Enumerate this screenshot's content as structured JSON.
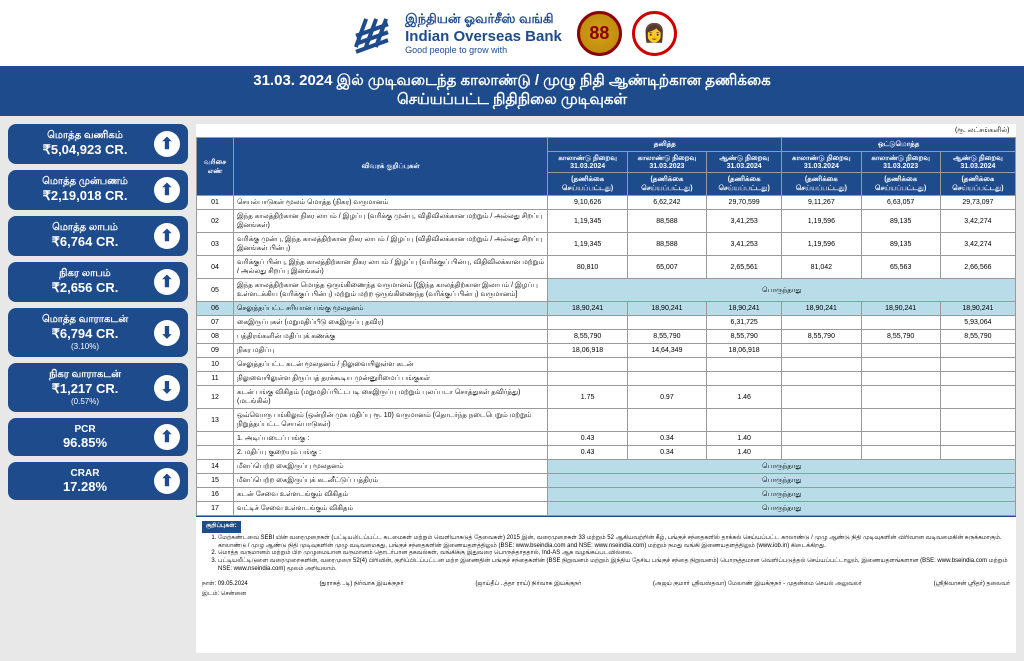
{
  "header": {
    "tamil_name": "இந்தியன் ஓவர்சீஸ் வங்கி",
    "eng_name": "Indian Overseas Bank",
    "tagline": "Good people to grow with",
    "badge1": "88",
    "badge2": "👩"
  },
  "title": {
    "line1": "31.03. 2024 இல் முடிவடைந்த காலாண்டு / முழு நிதி ஆண்டிற்கான தணிக்கை",
    "line2": "செய்யப்பட்ட நிதிநிலை முடிவுகள்"
  },
  "kpis": [
    {
      "label": "மொத்த வணிகம்",
      "value": "₹5,04,923 CR.",
      "sub": "",
      "dir": "up"
    },
    {
      "label": "மொத்த முன்பணம்",
      "value": "₹2,19,018 CR.",
      "sub": "",
      "dir": "up"
    },
    {
      "label": "மொத்த லாபம்",
      "value": "₹6,764 CR.",
      "sub": "",
      "dir": "up"
    },
    {
      "label": "நிகர லாபம்",
      "value": "₹2,656 CR.",
      "sub": "",
      "dir": "up"
    },
    {
      "label": "மொத்த வாராகடன்",
      "value": "₹6,794 CR.",
      "sub": "(3.10%)",
      "dir": "down"
    },
    {
      "label": "நிகர வாராகடன்",
      "value": "₹1,217 CR.",
      "sub": "(0.57%)",
      "dir": "down"
    },
    {
      "label": "PCR",
      "value": "96.85%",
      "sub": "",
      "dir": "up"
    },
    {
      "label": "CRAR",
      "value": "17.28%",
      "sub": "",
      "dir": "up"
    }
  ],
  "table": {
    "unit": "(ரூ. லட்சங்களில்)",
    "col_sno": "வரிசை எண்",
    "col_particulars": "விவரக் குறிப்புகள்",
    "grp_standalone": "தனித்த",
    "grp_consolidated": "ஒட்டுமொத்த",
    "sub_q_2024": "காலாண்டு நிறைவு 31.03.2024",
    "sub_q_2023": "காலாண்டு நிறைவு 31.03.2023",
    "sub_y_2024": "ஆண்டு நிறைவு 31.03.2024",
    "sub_audited": "(தணிக்கை செய்யப்பட்டது)",
    "na_text": "பொருந்தாது",
    "rows": [
      {
        "sno": "01",
        "desc": "செயல்பாடுகள் மூலம் மொத்த (நிகர) வருமானம்",
        "v": [
          "9,10,626",
          "6,62,242",
          "29,70,599",
          "9,11,267",
          "6,63,057",
          "29,73,097"
        ]
      },
      {
        "sno": "02",
        "desc": "இந்த காலத்திற்கான நிகர லாபம் / இழப்பு (வரிக்கு முன்பு, விதிவிலக்கான மற்றும் / அல்லது சிறப்பு இனங்கள்)",
        "v": [
          "1,19,345",
          "88,588",
          "3,41,253",
          "1,19,596",
          "89,135",
          "3,42,274"
        ]
      },
      {
        "sno": "03",
        "desc": "வரிக்கு முன்பு, இந்த காலத்திற்கான நிகர லாபம் / இழப்பு (விதிவிலக்கான மற்றும் / அல்லது சிறப்பு இனங்கள் பின்பு)",
        "v": [
          "1,19,345",
          "88,588",
          "3,41,253",
          "1,19,596",
          "89,135",
          "3,42,274"
        ]
      },
      {
        "sno": "04",
        "desc": "வரிக்குப் பின்பு, இந்த காலத்திற்கான நிகர லாபம் / இழப்பு (வரிக்குப் பின்பு, விதிவிலக்கான மற்றும் / அல்லது சிறப்பு இனங்கள்)",
        "v": [
          "80,810",
          "65,007",
          "2,65,561",
          "81,042",
          "65,563",
          "2,66,566"
        ]
      },
      {
        "sno": "05",
        "desc": "இந்த காலத்திற்கான மொத்த ஒருங்கிணைந்த வருமானம் [(இந்த காலத்திற்கான இலாபம் / இழப்பு உள்ளடக்கிய (வரிக்குப் பின்பு) மற்றும் மற்ற ஒருங்கிணைந்த (வரிக்குப் பின்பு) வருமானம்]",
        "na": true
      },
      {
        "sno": "06",
        "desc": "செலுத்தப்பட்ட சரியான பங்கு மூலதனம்",
        "v": [
          "18,90,241",
          "18,90,241",
          "18,90,241",
          "18,90,241",
          "18,90,241",
          "18,90,241"
        ],
        "hl": true
      },
      {
        "sno": "07",
        "desc": "கைஇருப்புகள் (மறுமதிப்பீடு கைஇருப்பு தவிர)",
        "v": [
          "",
          "",
          "6,31,725",
          "",
          "",
          "5,93,064"
        ]
      },
      {
        "sno": "08",
        "desc": "பத்திரங்களின் மதிப்புக் கணக்கு",
        "v": [
          "8,55,790",
          "8,55,790",
          "8,55,790",
          "8,55,790",
          "8,55,790",
          "8,55,790"
        ]
      },
      {
        "sno": "09",
        "desc": "நிகர மதிப்பு",
        "v": [
          "18,06,918",
          "14,64,349",
          "18,06,918",
          "",
          "",
          ""
        ]
      },
      {
        "sno": "10",
        "desc": "செலுத்தப்பட்ட கடன் மூலதனம் / நிலுவையிலுள்ள கடன்",
        "v": [
          "",
          "",
          "",
          "",
          "",
          ""
        ]
      },
      {
        "sno": "11",
        "desc": "நிலுவையிலுள்ள திருப்பத் தரக்கூடிய முன்னுரிமைப் பங்குகள்",
        "v": [
          "",
          "",
          "",
          "",
          "",
          ""
        ]
      },
      {
        "sno": "12",
        "desc": "கடன் பங்கு விகிதம் (மறுமதிப்பிட்டபடி கைஇருப்பு மற்றும் புலப்படா சொத்துகள் தவிர்த்து) (மடங்கில்)",
        "v": [
          "1.75",
          "0.97",
          "1.46",
          "",
          "",
          ""
        ]
      },
      {
        "sno": "13",
        "desc": "ஒவ்வொரு பங்கிலும் (ஒன்றின் முக மதிப்பு ரூ. 10) வருமானம் (தொடர்ந்த நடைபெறும் மற்றும் நிறுத்தப்பட்ட செயல்பாடுகள்)",
        "v": [
          "",
          "",
          "",
          "",
          "",
          ""
        ]
      },
      {
        "sno": "",
        "desc": "1. அடிப்படைப் பங்கு :",
        "v": [
          "0.43",
          "0.34",
          "1.40",
          "",
          "",
          ""
        ]
      },
      {
        "sno": "",
        "desc": "2. மதிப்பு குறையும் பங்கு :",
        "v": [
          "0.43",
          "0.34",
          "1.40",
          "",
          "",
          ""
        ]
      },
      {
        "sno": "14",
        "desc": "மீளப்பெற்ற கைஇருப்பு மூலதனம்",
        "na": true
      },
      {
        "sno": "15",
        "desc": "மீளப்பெற்ற கைஇருப்புக் கடனீட்டுப் பத்திரம்",
        "na": true
      },
      {
        "sno": "16",
        "desc": "கடன் சேவை உள்ளடங்கும் விகிதம்",
        "na": true
      },
      {
        "sno": "17",
        "desc": "வட்டிச் சேவை உள்ளடங்கும் விகிதம்",
        "na": true
      }
    ]
  },
  "notes": {
    "title": "குறிப்புகள்:",
    "items": [
      "மேற்கண்டவை SEBI யின் வரைமுறைகள் (பட்டியலிடப்பட்ட கடமைகள் மற்றும் வெளியாகடுத் தேவைகள்) 2015 இன், வரைமுறைகள் 33 மற்றும் 52 ஆகியவற்றின் கீழ், பங்குச் சந்தைகளில் தாக்கல் செய்யப்பட்ட காலாண்டு / முழு ஆண்டு நிதி முடிவுகளின் விரிவான வடிவமைகின் சுருக்கமாகும். காலாண்டு / முழு ஆண்டு நிதி முடிவுகளின் முழு வடிவமைகது, பங்குச் சந்தைகளின் இணையதளத்திலும் (BSE: www.bseindia.com and NSE: www.nseindia.com) மற்றும் நமது வங்கி இணையதளத்திலும் (www.iob.in) கிடைக்கிறது.",
      "மொத்த வருமானம் மற்றும் பிற முழுமையான வருமானம் தொடர்பான தகவல்கள், வங்கிக்கு இதுவரை பொருந்தாததால், Ind-AS ஆக வழங்கப்படவில்லை.",
      "பட்டியலீட்டிடுளை வரைமுறைகளின், வரைமுறை 52(4) பிரிவின், குறிப்பிடப்பட்டன மற்ற இணைதின் பங்குச் சந்தைகளின் (BSE நிறுவனம் மற்றும் இந்திய தேசிய பங்குச் சந்தை நிறுவனம்) பொருத்தமான வெளிப்படுத்தல் செய்யப்பட்டாலும், இணையதளங்களான (BSE: www.bseindia.com மற்றும் NSE: www.nseindia.com) மூலம் அறியலாம்."
    ]
  },
  "footer": {
    "date": "நாள்: 09.05.2024",
    "place": "இடம்: சென்னை",
    "sig1": "(துராகத் ..டி) நிர்வாக இயக்குநர்",
    "sig2": "(ஜாய்தீப் ..த்தா ராய்) நிர்வாக இயக்குநர்",
    "sig3": "(அஜய் குமார் ஸ்ரீவஸ்தவா) மேலாண் இயக்குநர் - முதன்மை செயல் அலுவலர்",
    "sig4": "(ஸ்ரீநிவாசன் ஸ்ரீதர்) தலைவர்"
  },
  "colors": {
    "primary": "#1e4b8c",
    "highlight": "#b8dde8",
    "bg": "#e8e8e8"
  }
}
